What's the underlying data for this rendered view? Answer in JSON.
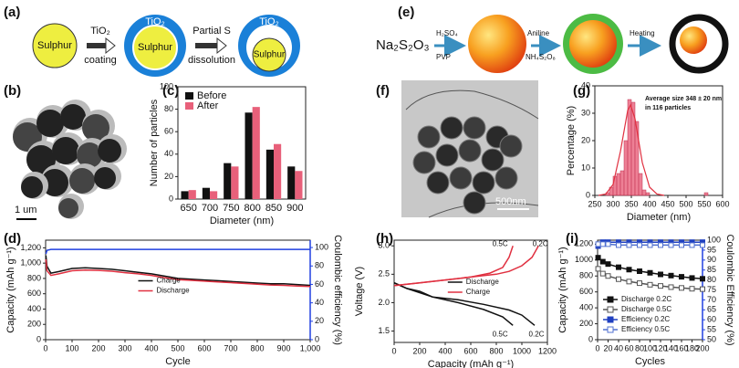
{
  "diagram_a": {
    "label": "(a)",
    "core": "Sulphur",
    "shell": "TiO₂",
    "step1": [
      "TiO₂",
      "coating"
    ],
    "step2": [
      "Partial S",
      "dissolution"
    ]
  },
  "diagram_e": {
    "label": "(e)",
    "start": "Na₂S₂O₃",
    "step1": [
      "H₂SO₄",
      "PVP"
    ],
    "step2": [
      "Aniline",
      "NH₄S₂O₈"
    ],
    "step3": "Heating"
  },
  "images": [
    {
      "label": "(b)",
      "scale": "1 um"
    },
    {
      "label": "(f)",
      "scale": "500nm"
    }
  ],
  "chart_data": [
    {
      "type": "bar",
      "label": "(c)",
      "xlabel": "Diameter (nm)",
      "ylabel": "Number of particles",
      "categories": [
        "650",
        "700",
        "750",
        "800",
        "850",
        "900"
      ],
      "series": [
        {
          "name": "Before",
          "color": "#111111",
          "values": [
            7,
            10,
            32,
            77,
            44,
            29
          ]
        },
        {
          "name": "After",
          "color": "#e8607a",
          "values": [
            8,
            7,
            29,
            82,
            49,
            25
          ]
        }
      ],
      "ylim": [
        0,
        100
      ],
      "yticks": [
        0,
        20,
        40,
        60,
        80,
        100
      ],
      "legend": "upper left"
    },
    {
      "type": "histogram",
      "label": "(g)",
      "xlabel": "Diameter (nm)",
      "ylabel": "Percentage (%)",
      "annotation": [
        "Average size 348 ± 20 nm",
        "in 116 particles"
      ],
      "bins": [
        280,
        290,
        300,
        310,
        320,
        330,
        340,
        350,
        360,
        370,
        380,
        390,
        400,
        410,
        420,
        430,
        440,
        450,
        460,
        470,
        480,
        490,
        500,
        510,
        520,
        530,
        540,
        550,
        560
      ],
      "values": [
        1,
        3,
        7,
        8,
        9,
        20,
        35,
        34,
        27,
        8,
        2,
        1,
        0,
        0,
        0,
        0,
        0,
        0,
        0,
        0,
        0,
        0,
        0,
        0,
        0,
        0,
        0,
        1
      ],
      "color": "#e8607a",
      "fit": {
        "color": "#e03040",
        "x": [
          260,
          280,
          300,
          320,
          340,
          348,
          360,
          380,
          400,
          420,
          440
        ],
        "values": [
          0,
          0.5,
          4,
          16,
          31,
          33,
          28,
          12,
          3,
          0.5,
          0
        ]
      },
      "xlim": [
        250,
        600
      ],
      "xticks": [
        250,
        300,
        350,
        400,
        450,
        500,
        550,
        600
      ],
      "ylim": [
        0,
        40
      ],
      "yticks": [
        0,
        10,
        20,
        30,
        40
      ]
    },
    {
      "type": "line",
      "label": "(d)",
      "xlabel": "Cycle",
      "ylabel": "Capacity (mAh g⁻¹)",
      "y2label": "Coulombic efficiency (%)",
      "x": [
        1,
        5,
        20,
        50,
        100,
        150,
        200,
        250,
        300,
        350,
        400,
        450,
        500,
        550,
        600,
        650,
        700,
        750,
        800,
        850,
        900,
        950,
        1000
      ],
      "series": [
        {
          "name": "Charge",
          "color": "#111111",
          "values": [
            1100,
            960,
            870,
            890,
            930,
            940,
            930,
            920,
            900,
            880,
            860,
            830,
            800,
            790,
            780,
            770,
            760,
            750,
            740,
            730,
            730,
            720,
            710
          ]
        },
        {
          "name": "Discharge",
          "color": "#e03040",
          "values": [
            1050,
            900,
            840,
            860,
            900,
            910,
            905,
            895,
            875,
            860,
            840,
            810,
            785,
            775,
            765,
            755,
            745,
            735,
            725,
            715,
            710,
            700,
            695
          ]
        },
        {
          "color": "#2040e0",
          "axis": "y2",
          "values": [
            93,
            97,
            98,
            98,
            98,
            98,
            98,
            98,
            98,
            98,
            98,
            98,
            98,
            98,
            98,
            98,
            98,
            98,
            98,
            98,
            98,
            98,
            98
          ]
        }
      ],
      "xlim": [
        0,
        1000
      ],
      "xticks": [
        0,
        100,
        200,
        300,
        400,
        500,
        600,
        700,
        800,
        900,
        {
          "value": 1000,
          "label": "1,000"
        }
      ],
      "ylim": [
        0,
        1300
      ],
      "yticks": [
        0,
        200,
        400,
        600,
        800,
        {
          "value": 1000,
          "label": "1,000"
        },
        {
          "value": 1200,
          "label": "1,200"
        }
      ],
      "y2lim": [
        0,
        108
      ],
      "y2ticks": [
        0,
        20,
        40,
        60,
        80,
        100
      ],
      "legend": "center"
    },
    {
      "type": "line",
      "label": "(h)",
      "xlabel": "Capacity (mAh g⁻¹)",
      "ylabel": "Voltage (V)",
      "series": [
        {
          "name": "Discharge",
          "rate": "0.2C",
          "color": "#111111",
          "x": [
            0,
            50,
            100,
            200,
            300,
            500,
            700,
            900,
            1000,
            1100
          ],
          "values": [
            2.35,
            2.3,
            2.25,
            2.2,
            2.1,
            2.05,
            1.97,
            1.87,
            1.78,
            1.6
          ]
        },
        {
          "name": "Discharge",
          "rate": "0.5C",
          "color": "#111111",
          "x": [
            0,
            100,
            300,
            500,
            700,
            850,
            930
          ],
          "values": [
            2.35,
            2.25,
            2.1,
            2.0,
            1.88,
            1.75,
            1.6
          ]
        },
        {
          "name": "Charge",
          "rate": "0.2C",
          "color": "#e03040",
          "x": [
            0,
            200,
            400,
            600,
            800,
            900,
            1000,
            1080,
            1130
          ],
          "values": [
            2.3,
            2.35,
            2.4,
            2.45,
            2.5,
            2.55,
            2.65,
            2.8,
            3.0
          ]
        },
        {
          "name": "Charge",
          "rate": "0.5C",
          "color": "#e03040",
          "x": [
            0,
            200,
            400,
            600,
            750,
            850,
            900,
            930
          ],
          "values": [
            2.3,
            2.35,
            2.4,
            2.45,
            2.52,
            2.62,
            2.8,
            3.0
          ]
        }
      ],
      "xlim": [
        0,
        1200
      ],
      "xticks": [
        0,
        200,
        400,
        600,
        800,
        1000,
        1200
      ],
      "ylim": [
        1.3,
        3.1
      ],
      "yticks": [
        1.5,
        {
          "value": 2,
          "label": "2.0"
        },
        2.5,
        {
          "value": 3,
          "label": "3.0"
        }
      ],
      "legend": "center"
    },
    {
      "type": "line",
      "label": "(i)",
      "xlabel": "Cycles",
      "ylabel": "Capacity (mAh g⁻¹)",
      "y2label": "Coulombic Efficiency (%)",
      "x": [
        1,
        10,
        20,
        40,
        60,
        80,
        100,
        120,
        140,
        160,
        180,
        200
      ],
      "series": [
        {
          "name": "Discharge 0.2C",
          "color": "#111111",
          "marker": "filled",
          "values": [
            1030,
            980,
            950,
            910,
            880,
            860,
            840,
            820,
            805,
            790,
            775,
            765
          ]
        },
        {
          "name": "Discharge 0.5C",
          "color": "#555555",
          "marker": "open",
          "values": [
            890,
            830,
            800,
            760,
            730,
            710,
            690,
            675,
            660,
            650,
            640,
            635
          ]
        },
        {
          "name": "Efficiency 0.2C",
          "color": "#2040c0",
          "marker": "filled",
          "axis": "y2",
          "values": [
            97,
            99,
            99,
            99,
            99,
            99,
            99,
            99,
            99,
            99,
            99,
            99
          ]
        },
        {
          "name": "Efficiency 0.5C",
          "color": "#5070d0",
          "marker": "open",
          "axis": "y2",
          "values": [
            98,
            98,
            98,
            97.5,
            97.5,
            97.5,
            97.5,
            97.5,
            97.5,
            97.5,
            97.5,
            97.5
          ]
        }
      ],
      "xlim": [
        0,
        200
      ],
      "xticks": [
        0,
        20,
        40,
        60,
        80,
        100,
        120,
        140,
        160,
        180,
        200
      ],
      "ylim": [
        0,
        1250
      ],
      "yticks": [
        0,
        200,
        400,
        600,
        800,
        1000,
        1200
      ],
      "y2lim": [
        50,
        100
      ],
      "y2ticks": [
        50,
        55,
        60,
        65,
        70,
        75,
        80,
        85,
        90,
        95,
        100
      ],
      "legend": "lower left"
    }
  ]
}
